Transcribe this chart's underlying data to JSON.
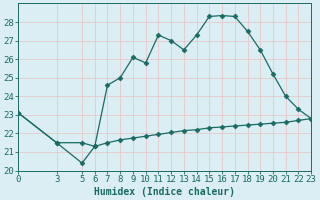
{
  "line1_x": [
    0,
    3,
    5,
    6,
    7,
    8,
    9,
    10,
    11,
    12,
    13,
    14,
    15,
    16,
    17,
    18,
    19,
    20,
    21,
    22,
    23
  ],
  "line1_y": [
    23.1,
    21.5,
    20.4,
    21.3,
    24.6,
    25.0,
    26.1,
    25.8,
    27.3,
    27.0,
    26.5,
    27.3,
    28.3,
    28.35,
    28.3,
    27.5,
    26.5,
    25.2,
    24.0,
    23.3,
    22.8
  ],
  "line2_x": [
    0,
    3,
    5,
    6,
    7,
    8,
    9,
    10,
    11,
    12,
    13,
    14,
    15,
    16,
    17,
    18,
    19,
    20,
    21,
    22,
    23
  ],
  "line2_y": [
    23.1,
    21.5,
    21.5,
    21.3,
    21.5,
    21.65,
    21.75,
    21.85,
    21.95,
    22.05,
    22.15,
    22.2,
    22.3,
    22.35,
    22.4,
    22.45,
    22.5,
    22.55,
    22.6,
    22.7,
    22.8
  ],
  "line_color": "#1a6b62",
  "bg_color": "#daeef3",
  "grid_color": "#e8c8c8",
  "xlabel": "Humidex (Indice chaleur)",
  "ylim": [
    20,
    29
  ],
  "xlim": [
    0,
    23
  ],
  "yticks": [
    20,
    21,
    22,
    23,
    24,
    25,
    26,
    27,
    28
  ],
  "xticks": [
    0,
    3,
    5,
    6,
    7,
    8,
    9,
    10,
    11,
    12,
    13,
    14,
    15,
    16,
    17,
    18,
    19,
    20,
    21,
    22,
    23
  ],
  "xtick_labels": [
    "0",
    "3",
    "5",
    "6",
    "7",
    "8",
    "9",
    "10",
    "11",
    "12",
    "13",
    "14",
    "15",
    "16",
    "17",
    "18",
    "19",
    "20",
    "21",
    "22",
    "23"
  ],
  "font_size": 6.5,
  "marker_size": 2.5
}
